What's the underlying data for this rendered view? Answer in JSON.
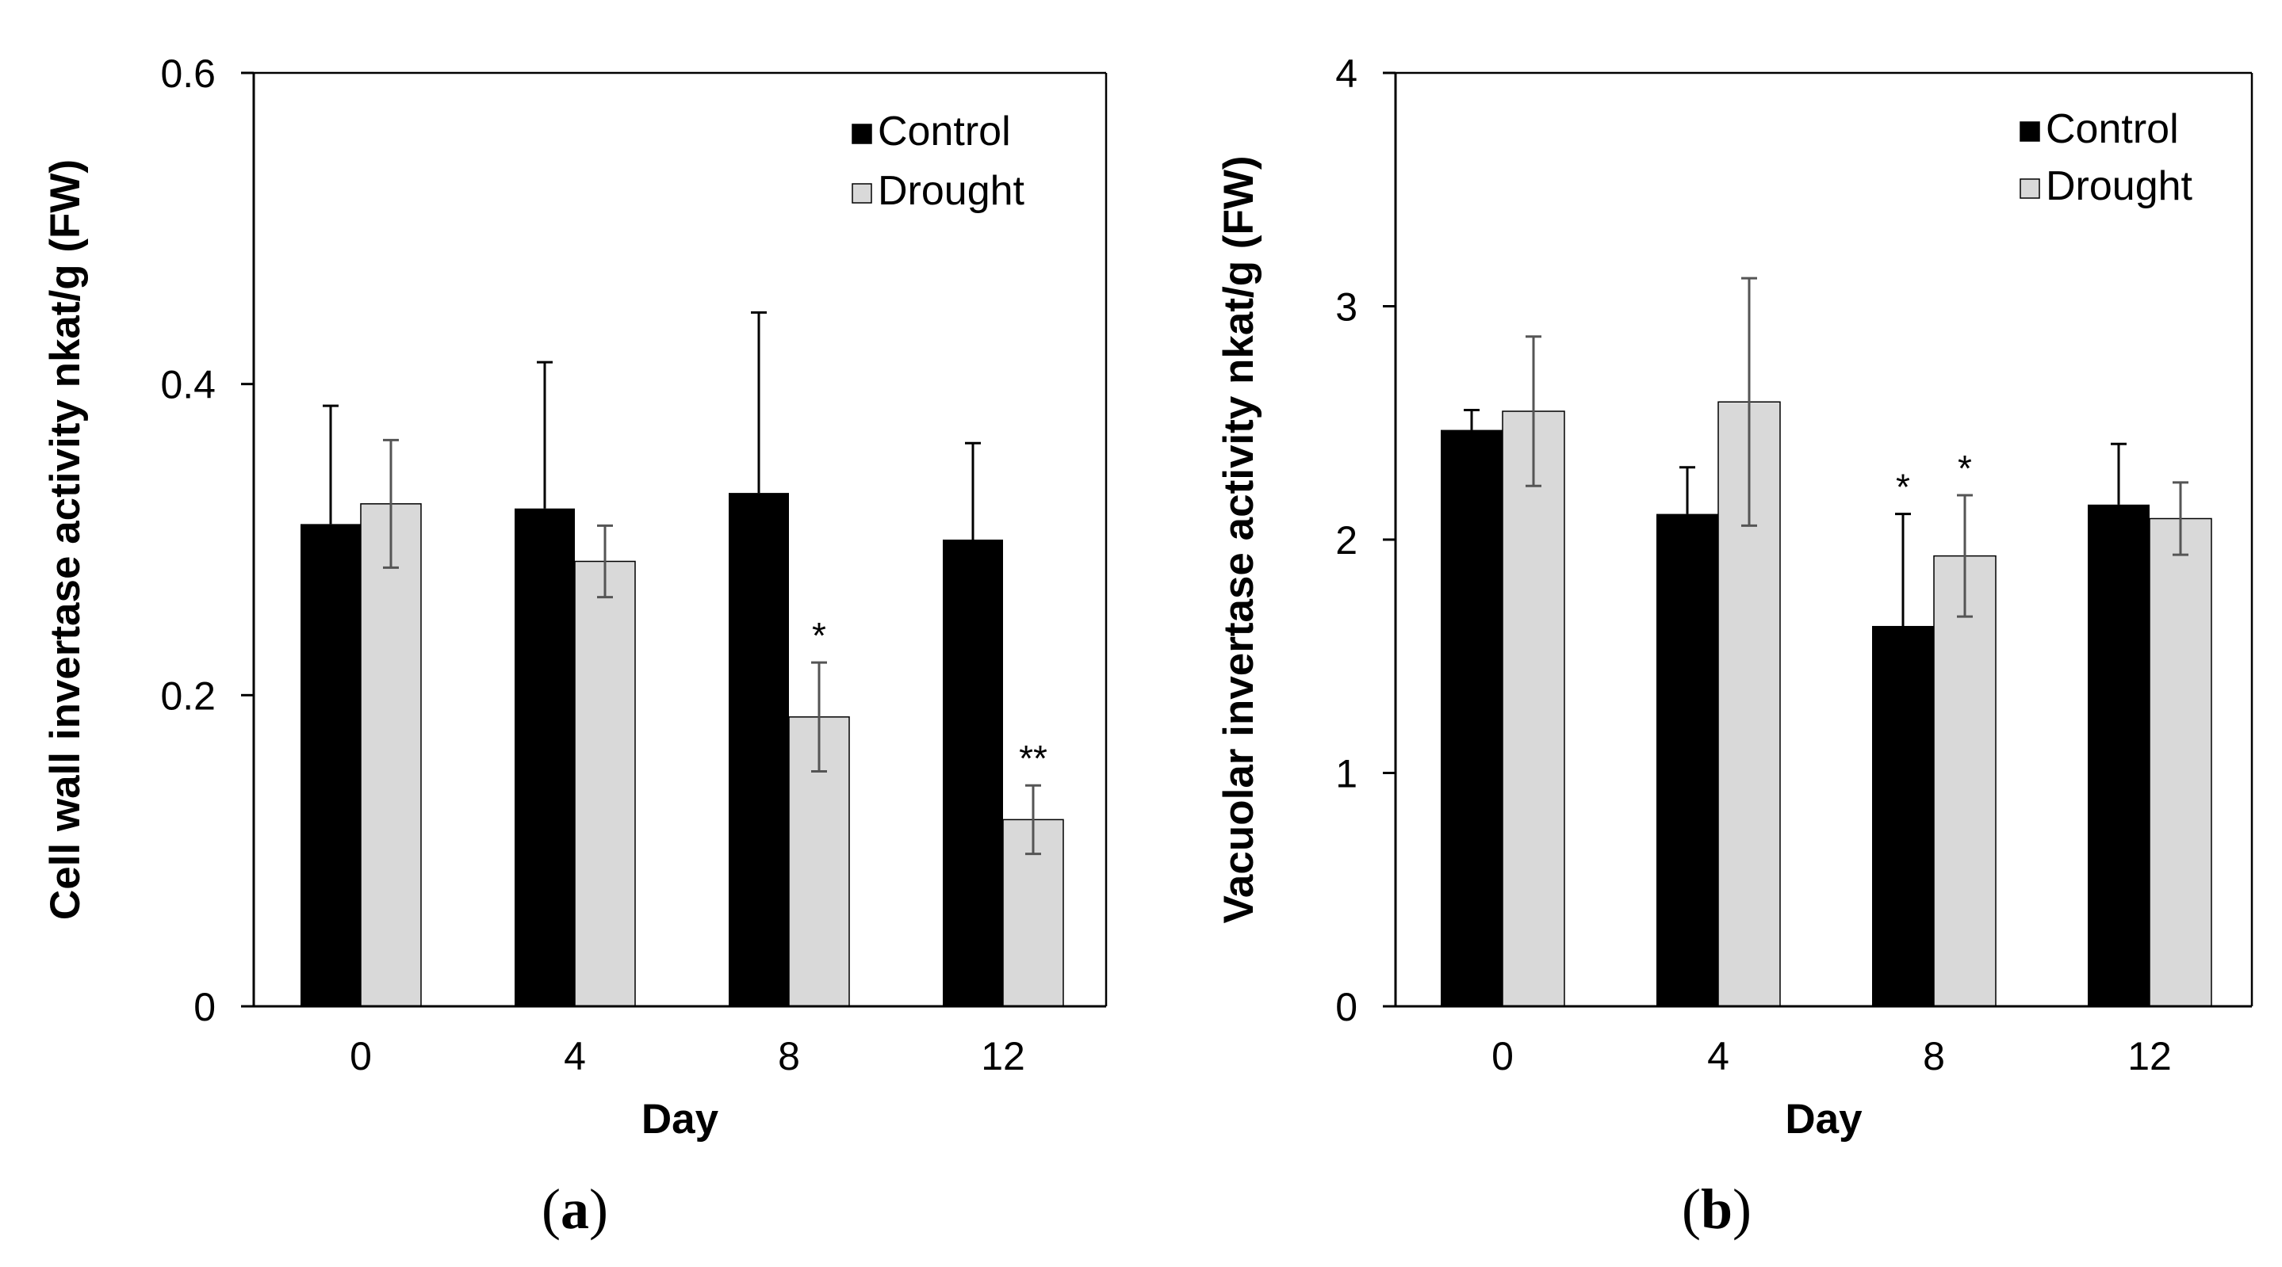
{
  "chart_data": [
    {
      "type": "bar",
      "panel_label": "a",
      "xlabel": "Day",
      "ylabel": "Cell wall invertase activity nkat/g (FW)",
      "categories": [
        "0",
        "4",
        "8",
        "12"
      ],
      "ylim": [
        0,
        0.6
      ],
      "yticks": [
        "0",
        "0.2",
        "0.4",
        "0.6"
      ],
      "legend_position": "top-right",
      "series": [
        {
          "name": "Control",
          "color": "#000000",
          "values": [
            0.31,
            0.32,
            0.33,
            0.3
          ],
          "errors": [
            0.076,
            0.094,
            0.116,
            0.062
          ],
          "annotations": [
            "",
            "",
            "",
            ""
          ]
        },
        {
          "name": "Drought",
          "color": "#d9d9d9",
          "values": [
            0.323,
            0.286,
            0.186,
            0.12
          ],
          "errors": [
            0.041,
            0.023,
            0.035,
            0.022
          ],
          "annotations": [
            "",
            "",
            "*",
            "**"
          ]
        }
      ]
    },
    {
      "type": "bar",
      "panel_label": "b",
      "xlabel": "Day",
      "ylabel": "Vacuolar invertase activity nkat/g (FW)",
      "categories": [
        "0",
        "4",
        "8",
        "12"
      ],
      "ylim": [
        0,
        4
      ],
      "yticks": [
        "0",
        "1",
        "2",
        "3",
        "4"
      ],
      "legend_position": "top-right",
      "series": [
        {
          "name": "Control",
          "color": "#000000",
          "values": [
            2.47,
            2.11,
            1.63,
            2.15
          ],
          "errors": [
            0.085,
            0.2,
            0.48,
            0.26
          ],
          "annotations": [
            "",
            "",
            "*",
            ""
          ]
        },
        {
          "name": "Drought",
          "color": "#d9d9d9",
          "values": [
            2.55,
            2.59,
            1.93,
            2.09
          ],
          "errors": [
            0.32,
            0.53,
            0.26,
            0.155
          ],
          "annotations": [
            "",
            "",
            "*",
            ""
          ]
        }
      ]
    }
  ]
}
